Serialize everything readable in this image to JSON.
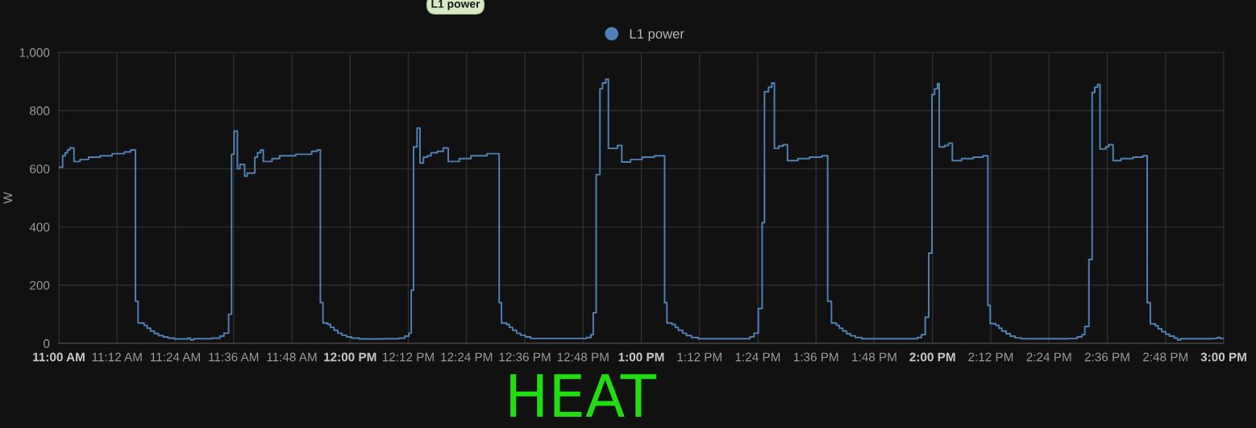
{
  "chart_data": {
    "type": "step",
    "ylabel": "W",
    "legend": "top",
    "grid": true,
    "marker": "none",
    "line_style": "solid",
    "annotations": [
      "L1 power",
      "HEAT"
    ],
    "xlim": [
      11.0,
      15.0
    ],
    "xticks": [
      {
        "value": 11.0,
        "label": "11:00 AM"
      },
      {
        "value": 11.2,
        "label": "11:12 AM"
      },
      {
        "value": 11.4,
        "label": "11:24 AM"
      },
      {
        "value": 11.6,
        "label": "11:36 AM"
      },
      {
        "value": 11.8,
        "label": "11:48 AM"
      },
      {
        "value": 12.0,
        "label": "12:00 PM"
      },
      {
        "value": 12.2,
        "label": "12:12 PM"
      },
      {
        "value": 12.4,
        "label": "12:24 PM"
      },
      {
        "value": 12.6,
        "label": "12:36 PM"
      },
      {
        "value": 12.8,
        "label": "12:48 PM"
      },
      {
        "value": 13.0,
        "label": "1:00 PM"
      },
      {
        "value": 13.2,
        "label": "1:12 PM"
      },
      {
        "value": 13.4,
        "label": "1:24 PM"
      },
      {
        "value": 13.6,
        "label": "1:36 PM"
      },
      {
        "value": 13.8,
        "label": "1:48 PM"
      },
      {
        "value": 14.0,
        "label": "2:00 PM"
      },
      {
        "value": 14.2,
        "label": "2:12 PM"
      },
      {
        "value": 14.4,
        "label": "2:24 PM"
      },
      {
        "value": 14.6,
        "label": "2:36 PM"
      },
      {
        "value": 14.8,
        "label": "2:48 PM"
      },
      {
        "value": 15.0,
        "label": "3:00 PM"
      }
    ],
    "ylim": [
      0,
      1000
    ],
    "yticks": [
      0,
      200,
      400,
      600,
      800,
      {
        "value": 1000,
        "label": "1,000"
      }
    ],
    "series": [
      {
        "name": "L1 power",
        "color": "#4f81b4",
        "x": [
          11.0,
          11.013,
          11.022,
          11.03,
          11.038,
          11.052,
          11.073,
          11.102,
          11.142,
          11.183,
          11.225,
          11.247,
          11.263,
          11.272,
          11.293,
          11.303,
          11.315,
          11.328,
          11.342,
          11.358,
          11.375,
          11.397,
          11.443,
          11.452,
          11.463,
          11.525,
          11.553,
          11.567,
          11.583,
          11.593,
          11.602,
          11.613,
          11.622,
          11.638,
          11.647,
          11.673,
          11.682,
          11.693,
          11.702,
          11.732,
          11.758,
          11.813,
          11.868,
          11.887,
          11.898,
          11.907,
          11.923,
          11.933,
          11.945,
          11.958,
          11.972,
          11.988,
          12.005,
          12.032,
          12.115,
          12.168,
          12.188,
          12.202,
          12.21,
          12.218,
          12.23,
          12.24,
          12.252,
          12.265,
          12.278,
          12.3,
          12.32,
          12.337,
          12.375,
          12.415,
          12.47,
          12.512,
          12.52,
          12.537,
          12.547,
          12.558,
          12.572,
          12.585,
          12.602,
          12.62,
          12.717,
          12.812,
          12.827,
          12.835,
          12.845,
          12.858,
          12.867,
          12.878,
          12.887,
          12.918,
          12.933,
          12.963,
          13.003,
          13.045,
          13.08,
          13.088,
          13.105,
          13.117,
          13.127,
          13.142,
          13.155,
          13.172,
          13.195,
          13.265,
          13.373,
          13.387,
          13.402,
          13.415,
          13.423,
          13.437,
          13.448,
          13.457,
          13.472,
          13.487,
          13.502,
          13.538,
          13.578,
          13.62,
          13.64,
          13.653,
          13.67,
          13.68,
          13.692,
          13.705,
          13.718,
          13.735,
          13.757,
          13.867,
          13.948,
          13.962,
          13.975,
          13.987,
          13.998,
          14.007,
          14.017,
          14.023,
          14.042,
          14.055,
          14.068,
          14.1,
          14.14,
          14.173,
          14.19,
          14.198,
          14.217,
          14.228,
          14.238,
          14.253,
          14.267,
          14.283,
          14.305,
          14.468,
          14.497,
          14.513,
          14.523,
          14.537,
          14.548,
          14.557,
          14.567,
          14.575,
          14.595,
          14.605,
          14.62,
          14.647,
          14.688,
          14.722,
          14.737,
          14.748,
          14.765,
          14.775,
          14.787,
          14.8,
          14.813,
          14.83,
          14.842,
          14.852,
          14.962,
          14.978,
          14.988,
          15.0
        ],
        "values": [
          605,
          645,
          655,
          665,
          672,
          625,
          632,
          640,
          645,
          652,
          658,
          665,
          145,
          70,
          62,
          52,
          42,
          34,
          27,
          22,
          18,
          15,
          18,
          12,
          16,
          18,
          25,
          35,
          100,
          650,
          730,
          600,
          615,
          575,
          585,
          640,
          655,
          665,
          625,
          635,
          645,
          650,
          660,
          665,
          140,
          70,
          65,
          55,
          45,
          35,
          28,
          22,
          18,
          15,
          16,
          18,
          25,
          35,
          183,
          675,
          740,
          620,
          640,
          645,
          655,
          660,
          672,
          625,
          635,
          645,
          652,
          140,
          70,
          65,
          55,
          45,
          35,
          28,
          22,
          17,
          17,
          20,
          30,
          105,
          580,
          875,
          895,
          908,
          670,
          680,
          623,
          632,
          640,
          645,
          140,
          70,
          65,
          55,
          45,
          35,
          27,
          20,
          16,
          16,
          22,
          35,
          120,
          415,
          865,
          880,
          895,
          670,
          678,
          683,
          628,
          635,
          640,
          645,
          145,
          70,
          62,
          52,
          42,
          33,
          26,
          20,
          16,
          16,
          20,
          30,
          90,
          310,
          855,
          875,
          893,
          675,
          680,
          688,
          628,
          635,
          640,
          645,
          130,
          68,
          62,
          52,
          42,
          33,
          25,
          19,
          16,
          17,
          22,
          30,
          58,
          288,
          862,
          880,
          890,
          668,
          675,
          683,
          628,
          635,
          640,
          645,
          140,
          67,
          60,
          50,
          40,
          32,
          25,
          18,
          12,
          16,
          17,
          20,
          17,
          17
        ]
      }
    ]
  }
}
